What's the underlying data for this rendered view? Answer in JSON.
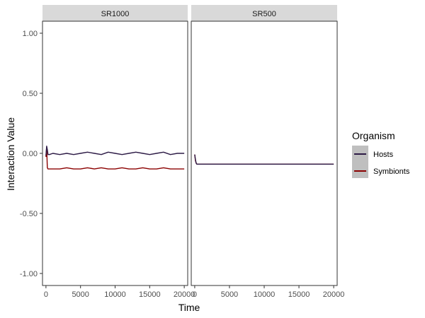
{
  "chart_data": {
    "type": "line",
    "facet_titles": [
      "SR1000",
      "SR500"
    ],
    "xlabel": "Time",
    "ylabel": "Interaction Value",
    "xlim": [
      -500,
      20500
    ],
    "ylim": [
      -1.1,
      1.1
    ],
    "x_ticks": [
      0,
      5000,
      10000,
      15000,
      20000
    ],
    "x_tick_labels": [
      "0",
      "5000",
      "10000",
      "15000",
      "20000"
    ],
    "y_ticks": [
      1.0,
      0.5,
      0.0,
      -0.5,
      -1.0
    ],
    "y_tick_labels": [
      "1.00",
      "0.50",
      "0.00",
      "-0.50",
      "-1.00"
    ],
    "grid": false,
    "legend": {
      "title": "Organism",
      "position": "right",
      "entries": [
        {
          "label": "Hosts",
          "color": "#2c1a45"
        },
        {
          "label": "Symbionts",
          "color": "#8b0000"
        }
      ]
    },
    "panels": [
      {
        "title": "SR1000",
        "series": [
          {
            "name": "Hosts",
            "color": "#2c1a45",
            "x": [
              0,
              100,
              200,
              300,
              500,
              1000,
              2000,
              3000,
              4000,
              5000,
              6000,
              7000,
              8000,
              9000,
              10000,
              11000,
              12000,
              13000,
              14000,
              15000,
              16000,
              17000,
              18000,
              19000,
              20000
            ],
            "y": [
              -0.02,
              0.06,
              0.03,
              -0.01,
              -0.01,
              0.0,
              -0.01,
              0.0,
              -0.01,
              0.0,
              0.01,
              0.0,
              -0.01,
              0.01,
              0.0,
              -0.01,
              0.0,
              0.01,
              0.0,
              -0.01,
              0.0,
              0.01,
              -0.01,
              0.0,
              0.0
            ]
          },
          {
            "name": "Symbionts",
            "color": "#8b0000",
            "x": [
              0,
              100,
              200,
              300,
              500,
              1000,
              2000,
              3000,
              4000,
              5000,
              6000,
              7000,
              8000,
              9000,
              10000,
              11000,
              12000,
              13000,
              14000,
              15000,
              16000,
              17000,
              18000,
              19000,
              20000
            ],
            "y": [
              -0.03,
              0.05,
              -0.12,
              -0.13,
              -0.13,
              -0.13,
              -0.13,
              -0.12,
              -0.13,
              -0.13,
              -0.12,
              -0.13,
              -0.12,
              -0.13,
              -0.13,
              -0.12,
              -0.13,
              -0.13,
              -0.12,
              -0.13,
              -0.13,
              -0.12,
              -0.13,
              -0.13,
              -0.13
            ]
          }
        ]
      },
      {
        "title": "SR500",
        "series": [
          {
            "name": "Hosts",
            "color": "#2c1a45",
            "x": [
              0,
              100,
              200,
              300,
              500,
              1000,
              2000,
              4000,
              6000,
              8000,
              10000,
              12000,
              14000,
              16000,
              18000,
              20000
            ],
            "y": [
              -0.01,
              -0.05,
              -0.08,
              -0.09,
              -0.09,
              -0.09,
              -0.09,
              -0.09,
              -0.09,
              -0.09,
              -0.09,
              -0.09,
              -0.09,
              -0.09,
              -0.09,
              -0.09
            ]
          },
          {
            "name": "Symbionts",
            "color": "#8b0000",
            "x": [
              0,
              100,
              200,
              300,
              500,
              1000,
              2000,
              4000,
              6000,
              8000,
              10000,
              12000,
              14000,
              16000,
              18000,
              20000
            ],
            "y": [
              -0.01,
              -0.06,
              -0.08,
              -0.09,
              -0.09,
              -0.09,
              -0.09,
              -0.09,
              -0.09,
              -0.09,
              -0.09,
              -0.09,
              -0.09,
              -0.09,
              -0.09,
              -0.09
            ]
          }
        ]
      }
    ]
  }
}
